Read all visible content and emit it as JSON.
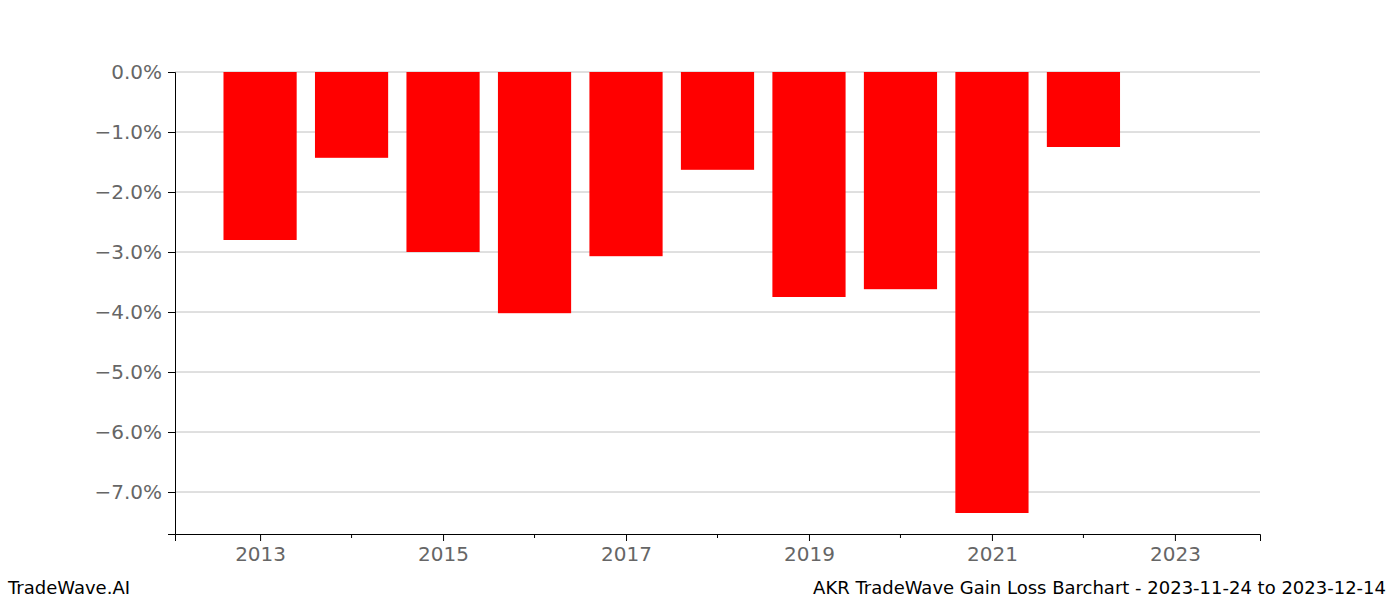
{
  "chart_data": {
    "type": "bar",
    "title": "AKR TradeWave Gain Loss Barchart - 2023-11-24 to 2023-12-14",
    "subtitle": "TradeWave.AI",
    "x": [
      2013,
      2014,
      2015,
      2016,
      2017,
      2018,
      2019,
      2020,
      2021,
      2022
    ],
    "values": [
      -2.8,
      -1.43,
      -3.0,
      -4.02,
      -3.07,
      -1.63,
      -3.75,
      -3.62,
      -7.35,
      -1.25
    ],
    "color": "#ff0000",
    "xlim": [
      2012.07,
      2023.93
    ],
    "xticks": [
      2013,
      2015,
      2017,
      2019,
      2021,
      2023
    ],
    "ylim": [
      -7.7,
      0
    ],
    "yticks": [
      {
        "value": 0,
        "label": "0.0%"
      },
      {
        "value": -1,
        "label": "−1.0%"
      },
      {
        "value": -2,
        "label": "−2.0%"
      },
      {
        "value": -3,
        "label": "−3.0%"
      },
      {
        "value": -4,
        "label": "−4.0%"
      },
      {
        "value": -5,
        "label": "−5.0%"
      },
      {
        "value": -6,
        "label": "−6.0%"
      },
      {
        "value": -7,
        "label": "−7.0%"
      }
    ],
    "grid": true
  }
}
